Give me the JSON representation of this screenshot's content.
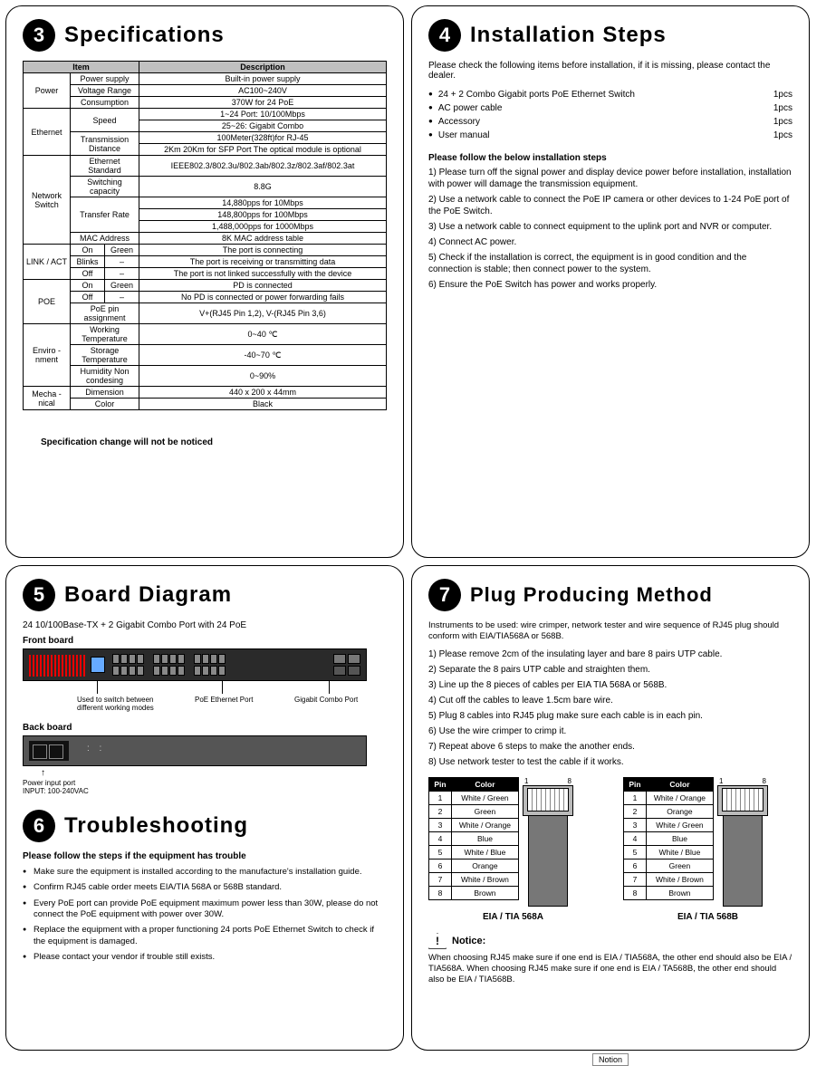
{
  "sections": {
    "spec": {
      "num": "3",
      "title": "Specifications"
    },
    "install": {
      "num": "4",
      "title": "Installation Steps"
    },
    "board": {
      "num": "5",
      "title": "Board Diagram"
    },
    "trouble": {
      "num": "6",
      "title": "Troubleshooting"
    },
    "plug": {
      "num": "7",
      "title": "Plug Producing Method"
    }
  },
  "spec_table": {
    "h_item": "Item",
    "h_desc": "Description",
    "power": {
      "lbl": "Power",
      "r1a": "Power supply",
      "r1b": "Built-in power supply",
      "r2a": "Voltage Range",
      "r2b": "AC100~240V",
      "r3a": "Consumption",
      "r3b": "370W for 24 PoE"
    },
    "eth": {
      "lbl": "Ethernet",
      "r1a": "Speed",
      "r1b": "1~24 Port: 10/100Mbps",
      "r1c": "25~26: Gigabit Combo",
      "r2a": "Transmission Distance",
      "r2b": "100Meter(328ft)for RJ-45",
      "r2c": "2Km 20Km for SFP Port The optical module is optional"
    },
    "net": {
      "lbl": "Network Switch",
      "r1a": "Ethernet Standard",
      "r1b": "IEEE802.3/802.3u/802.3ab/802.3z/802.3af/802.3at",
      "r2a": "Switching capacity",
      "r2b": "8.8G",
      "r3a": "Transfer Rate",
      "r3b": "14,880pps for 10Mbps",
      "r3c": "148,800pps for 100Mbps",
      "r3d": "1,488,000pps for 1000Mbps",
      "r4a": "MAC Address",
      "r4b": "8K MAC address table"
    },
    "link": {
      "lbl": "LINK / ACT",
      "r1a": "On",
      "r1b": "Green",
      "r1c": "The port is connecting",
      "r2a": "Blinks",
      "r2b": "–",
      "r2c": "The port is receiving or transmitting data",
      "r3a": "Off",
      "r3b": "–",
      "r3c": "The port is not linked successfully with the device"
    },
    "poe": {
      "lbl": "POE",
      "r1a": "On",
      "r1b": "Green",
      "r1c": "PD is connected",
      "r2a": "Off",
      "r2b": "–",
      "r2c": "No PD is connected or power forwarding fails",
      "r3a": "PoE pin assignment",
      "r3b": "V+(RJ45 Pin 1,2), V-(RJ45 Pin 3,6)"
    },
    "env": {
      "lbl": "Enviro -nment",
      "r1a": "Working Temperature",
      "r1b": "0~40 ℃",
      "r2a": "Storage Temperature",
      "r2b": "-40~70 ℃",
      "r3a": "Humidity Non condesing",
      "r3b": "0~90%"
    },
    "mech": {
      "lbl": "Mecha -nical",
      "r1a": "Dimension",
      "r1b": "440 x 200 x 44mm",
      "r2a": "Color",
      "r2b": "Black"
    }
  },
  "spec_note": "Specification change will not be noticed",
  "install_intro": "Please check the following items before installation, if it is missing, please contact the dealer.",
  "install_items": [
    {
      "name": "24 + 2 Combo Gigabit ports PoE Ethernet Switch",
      "qty": "1pcs"
    },
    {
      "name": "AC power cable",
      "qty": "1pcs"
    },
    {
      "name": "Accessory",
      "qty": "1pcs"
    },
    {
      "name": "User manual",
      "qty": "1pcs"
    }
  ],
  "install_steps_title": "Please follow the below installation steps",
  "install_steps": [
    "1) Please turn off the signal power and display device power before installation, installation with power will damage the transmission equipment.",
    "2) Use a network cable to connect the PoE IP camera or other devices to 1-24 PoE port of the PoE Switch.",
    "3) Use a network cable to connect equipment to the uplink port and NVR or computer.",
    "4) Connect AC power.",
    "5) Check if the installation is correct, the equipment is in good condition and the connection is stable; then connect power to the system.",
    "6) Ensure the PoE Switch has power and works properly."
  ],
  "board": {
    "subtitle": "24 10/100Base-TX + 2 Gigabit Combo Port with 24 PoE",
    "front": "Front board",
    "back": "Back board",
    "c1": "Used to switch between different working modes",
    "c2": "PoE Ethernet Port",
    "c3": "Gigabit Combo Port",
    "back_caption1": "Power input port",
    "back_caption2": "INPUT: 100-240VAC"
  },
  "trouble_title": "Please follow the steps if the equipment has trouble",
  "trouble_items": [
    "Make sure the equipment is installed according to the manufacture's installation guide.",
    "Confirm RJ45 cable order meets EIA/TIA 568A or 568B standard.",
    "Every PoE port can provide PoE equipment maximum power less than 30W, please do not connect the PoE equipment with power over 30W.",
    "Replace the equipment with a proper functioning 24 ports PoE Ethernet Switch to check if the equipment is damaged.",
    "Please contact your vendor if trouble still exists."
  ],
  "plug_intro": "Instruments to be used: wire crimper, network tester and wire sequence of RJ45 plug should conform with EIA/TIA568A or 568B.",
  "plug_steps": [
    "1) Please remove 2cm of the insulating layer and bare 8 pairs UTP cable.",
    "2) Separate the 8 pairs UTP cable and straighten them.",
    "3) Line up the 8 pieces of cables per EIA TIA 568A or 568B.",
    "4) Cut off the cables to leave 1.5cm bare wire.",
    "5) Plug 8 cables into RJ45 plug make sure each cable is in each pin.",
    "6) Use the wire crimper to crimp it.",
    "7) Repeat above 6 steps to make the another ends.",
    "8) Use network tester to test the cable if it works."
  ],
  "pins": {
    "h_pin": "Pin",
    "h_color": "Color",
    "n1": "1",
    "n8": "8",
    "a": [
      "White / Green",
      "Green",
      "White / Orange",
      "Blue",
      "White / Blue",
      "Orange",
      "White / Brown",
      "Brown"
    ],
    "b": [
      "White / Orange",
      "Orange",
      "White / Green",
      "Blue",
      "White / Blue",
      "Green",
      "White / Brown",
      "Brown"
    ],
    "label_a": "EIA / TIA 568A",
    "label_b": "EIA / TIA 568B"
  },
  "notice": {
    "title": "Notice:",
    "text": "When choosing RJ45 make sure if one end is EIA / TIA568A, the other end should also be EIA / TIA568A. When choosing RJ45 make sure if one end is EIA / TA568B, the other end should also be EIA / TIA568B."
  },
  "footer": "Notion"
}
